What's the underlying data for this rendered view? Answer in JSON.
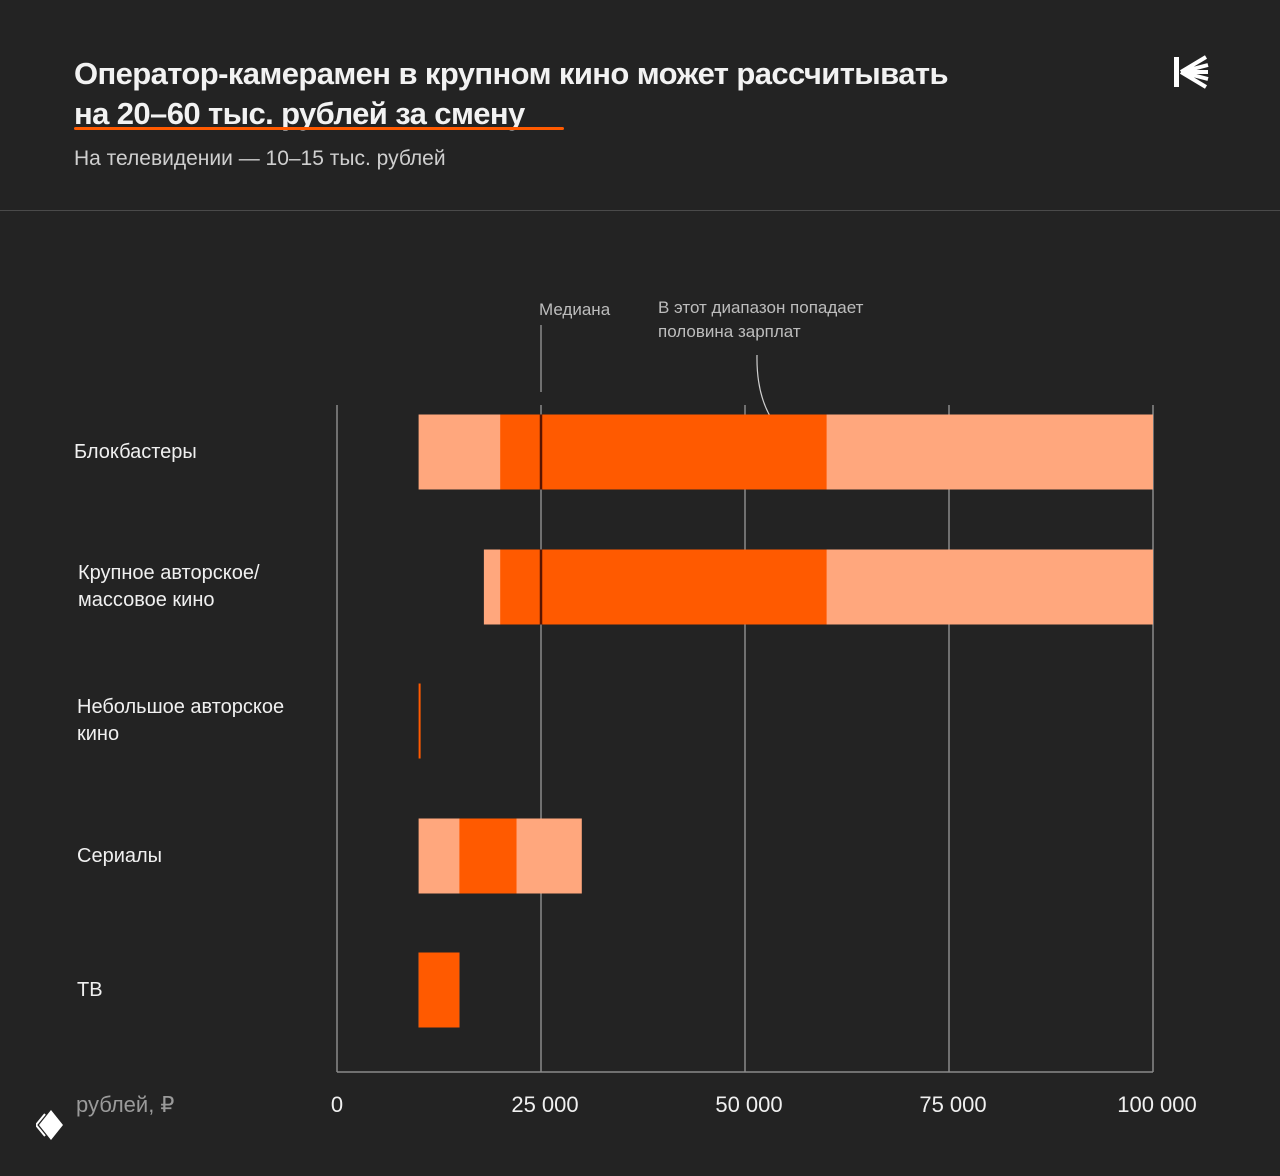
{
  "header": {
    "title_line1": "Оператор-камерамен в крупном кино может рассчитывать",
    "title_line2": "на 20–60 тыс. рублей за смену",
    "subtitle": "На телевидении — 10–15 тыс. рублей",
    "accent_color": "#ff5a00"
  },
  "chart_data": {
    "type": "bar",
    "orientation": "horizontal-range",
    "xlim": [
      0,
      100000
    ],
    "x_ticks": [
      0,
      25000,
      50000,
      75000,
      100000
    ],
    "x_tick_labels": [
      "0",
      "25 000",
      "50 000",
      "75 000",
      "100 000"
    ],
    "xlabel": "рублей, ₽",
    "grid": true,
    "annotations": {
      "median": "Медиана",
      "range": "В этот диапазон попадает половина зарплат"
    },
    "colors": {
      "full_range": "#ffa77d",
      "interquartile": "#ff5a00",
      "median": "#5a1500"
    },
    "categories": [
      "Блокбастеры",
      "Крупное авторское/ массовое кино",
      "Небольшое авторское кино",
      "Сериалы",
      "ТВ"
    ],
    "category_lines": [
      [
        "Блокбастеры"
      ],
      [
        "Крупное авторское/",
        "массовое кино"
      ],
      [
        "Небольшое авторское",
        "кино"
      ],
      [
        "Сериалы"
      ],
      [
        "ТВ"
      ]
    ],
    "series": [
      {
        "min": 10000,
        "q1": 20000,
        "median": 25000,
        "q3": 60000,
        "max": 100000
      },
      {
        "min": 18000,
        "q1": 20000,
        "median": 25000,
        "q3": 60000,
        "max": 100000
      },
      {
        "min": 10000,
        "q1": 10000,
        "median": null,
        "q3": 10000,
        "max": 10000
      },
      {
        "min": 10000,
        "q1": 15000,
        "median": null,
        "q3": 22000,
        "max": 30000
      },
      {
        "min": 10000,
        "q1": 10000,
        "median": null,
        "q3": 15000,
        "max": 15000
      }
    ]
  }
}
